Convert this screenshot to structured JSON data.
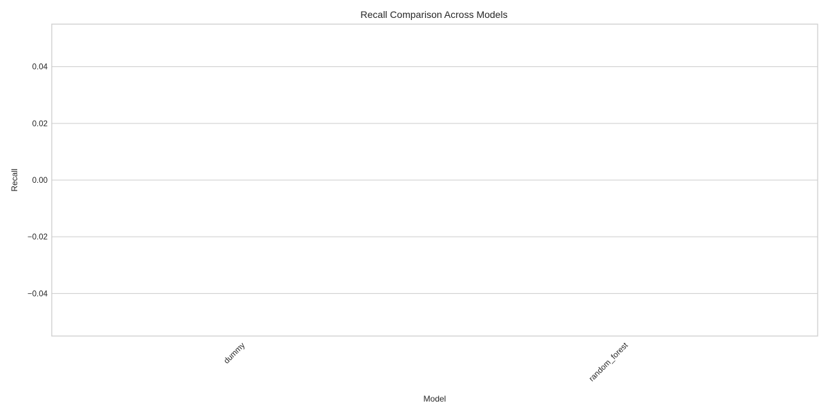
{
  "chart_data": {
    "type": "bar",
    "title": "Recall Comparison Across Models",
    "xlabel": "Model",
    "ylabel": "Recall",
    "categories": [
      "dummy",
      "random_forest"
    ],
    "values": [
      0.0,
      0.0
    ],
    "ylim": [
      -0.055,
      0.055
    ],
    "yticks": [
      0.04,
      0.02,
      0.0,
      -0.02,
      -0.04
    ],
    "ytick_labels": [
      "0.04",
      "0.02",
      "0.00",
      "−0.02",
      "−0.04"
    ],
    "grid": true,
    "grid_axis": "y",
    "xtick_rotation_deg": 45,
    "colors": {
      "grid": "#cccccc",
      "frame": "#cccccc",
      "text": "#262626",
      "bar": "#4c72b0"
    }
  }
}
